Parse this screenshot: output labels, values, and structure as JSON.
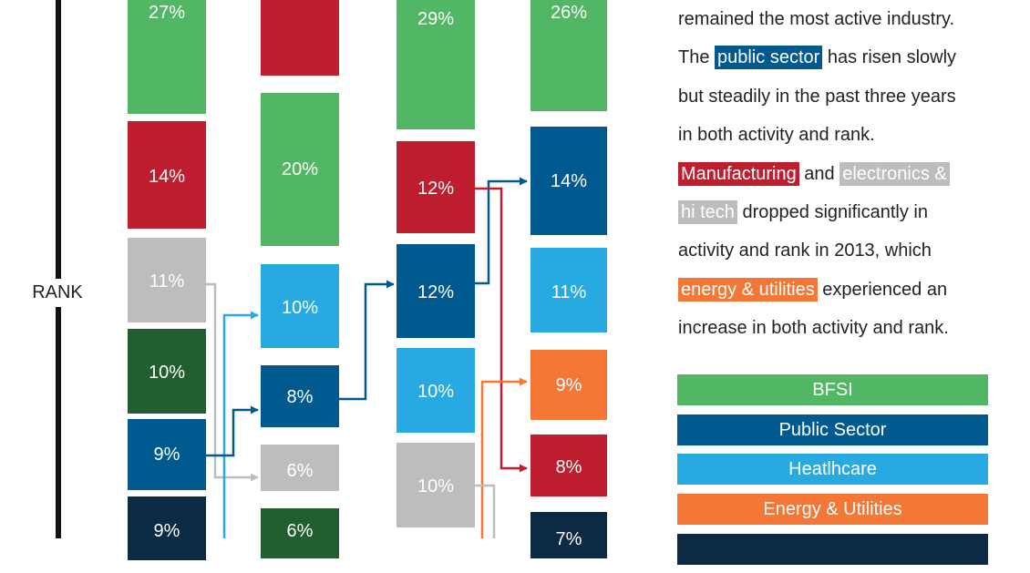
{
  "colors": {
    "bfsi": "#52b765",
    "public_sector": "#005a8f",
    "healthcare": "#27a9e1",
    "energy_utilities": "#f47735",
    "manufacturing": "#be1e2d",
    "electronics": "#bdbdbd",
    "dark_green": "#235e31",
    "navy": "#0c2a44"
  },
  "axis": {
    "rank_label": "RANK"
  },
  "chart_data": {
    "type": "bar",
    "title": "",
    "xlabel": "",
    "ylabel": "RANK",
    "columns": [
      {
        "bars": [
          {
            "label": "27%",
            "value": 27,
            "color": "bfsi"
          },
          {
            "label": "14%",
            "value": 14,
            "color": "manufacturing"
          },
          {
            "label": "11%",
            "value": 11,
            "color": "electronics"
          },
          {
            "label": "10%",
            "value": 10,
            "color": "dark_green"
          },
          {
            "label": "9%",
            "value": 9,
            "color": "public_sector"
          },
          {
            "label": "9%",
            "value": 9,
            "color": "navy"
          }
        ]
      },
      {
        "bars": [
          {
            "label": "",
            "value": null,
            "color": "manufacturing"
          },
          {
            "label": "20%",
            "value": 20,
            "color": "bfsi"
          },
          {
            "label": "10%",
            "value": 10,
            "color": "healthcare"
          },
          {
            "label": "8%",
            "value": 8,
            "color": "public_sector"
          },
          {
            "label": "6%",
            "value": 6,
            "color": "electronics"
          },
          {
            "label": "6%",
            "value": 6,
            "color": "dark_green"
          }
        ]
      },
      {
        "bars": [
          {
            "label": "29%",
            "value": 29,
            "color": "bfsi"
          },
          {
            "label": "12%",
            "value": 12,
            "color": "manufacturing"
          },
          {
            "label": "12%",
            "value": 12,
            "color": "public_sector"
          },
          {
            "label": "10%",
            "value": 10,
            "color": "healthcare"
          },
          {
            "label": "10%",
            "value": 10,
            "color": "electronics"
          }
        ]
      },
      {
        "bars": [
          {
            "label": "26%",
            "value": 26,
            "color": "bfsi"
          },
          {
            "label": "14%",
            "value": 14,
            "color": "public_sector"
          },
          {
            "label": "11%",
            "value": 11,
            "color": "healthcare"
          },
          {
            "label": "9%",
            "value": 9,
            "color": "energy_utilities"
          },
          {
            "label": "8%",
            "value": 8,
            "color": "manufacturing"
          },
          {
            "label": "7%",
            "value": 7,
            "color": "navy"
          }
        ]
      }
    ]
  },
  "narrative": {
    "line1": "remained the most active industry.",
    "line2_pre": "The ",
    "line2_hl": "public sector",
    "line2_post": " has risen slowly",
    "line3": "but steadily in the past three years",
    "line4": "in both activity and rank.",
    "line5_hl1": "Manufacturing",
    "line5_mid": " and ",
    "line5_hl2": "electronics &",
    "line6_hl": "hi tech",
    "line6_post": " dropped significantly in",
    "line7": "activity and rank in 2013, which",
    "line8_hl": "energy & utilities",
    "line8_post": " experienced an",
    "line9": "increase in both activity and rank."
  },
  "legend": [
    {
      "label": "BFSI",
      "color": "bfsi"
    },
    {
      "label": "Public Sector",
      "color": "public_sector"
    },
    {
      "label": "Heatlhcare",
      "color": "healthcare"
    },
    {
      "label": "Energy & Utilities",
      "color": "energy_utilities"
    },
    {
      "label": "",
      "color": "navy"
    }
  ]
}
